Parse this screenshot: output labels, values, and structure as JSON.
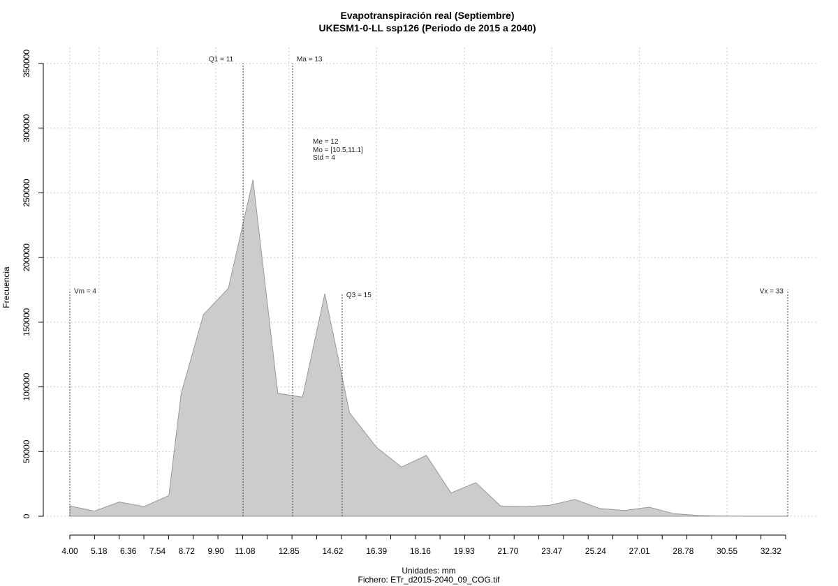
{
  "chart_data": {
    "type": "area",
    "title": "Evapotranspiración real (Septiembre)",
    "subtitle": "UKESM1-0-LL ssp126 (Periodo de 2015 a 2040)",
    "xlabel": "Unidades: mm",
    "ylabel": "Frecuencia",
    "footer": "Fichero: ETr_d2015-2040_09_COG.tif",
    "xlim": [
      4.0,
      33.0
    ],
    "ylim": [
      0,
      350000
    ],
    "x_ticks": [
      "4.00",
      "5.18",
      "6.36",
      "7.54",
      "8.72",
      "9.90",
      "11.08",
      "12.85",
      "14.62",
      "16.39",
      "18.16",
      "19.93",
      "21.70",
      "23.47",
      "25.24",
      "27.01",
      "28.78",
      "30.55",
      "32.32"
    ],
    "y_ticks": [
      "0",
      "50000",
      "100000",
      "150000",
      "200000",
      "250000",
      "300000",
      "350000"
    ],
    "grid": true,
    "colors": {
      "fill": "#cccccc",
      "stroke": "#999999",
      "grid": "#c8c8c8",
      "ref_line": "#444444"
    },
    "series": [
      {
        "x": [
          4.0,
          5.0,
          6.0,
          7.0,
          8.0,
          8.5,
          9.4,
          10.4,
          11.4,
          12.4,
          13.4,
          14.3,
          15.3,
          16.4,
          17.4,
          18.4,
          19.4,
          20.4,
          21.4,
          22.4,
          23.4,
          24.4,
          25.4,
          26.4,
          27.4,
          28.4,
          29.4,
          30.4,
          31.4,
          32.4,
          33.0
        ],
        "values": [
          8000,
          4000,
          11000,
          7500,
          16000,
          95000,
          156000,
          176000,
          260000,
          95000,
          92000,
          172000,
          80000,
          53000,
          38000,
          47000,
          18000,
          26000,
          8000,
          7500,
          8500,
          13000,
          6000,
          4500,
          7000,
          2000,
          600,
          200,
          100,
          100,
          100
        ]
      }
    ],
    "reference_lines": [
      {
        "label": "Vm = 4",
        "x": 4.0,
        "height": 175000
      },
      {
        "label": "Q1 = 11",
        "x": 11.0,
        "height": 350000
      },
      {
        "label": "Ma = 13",
        "x": 13.0,
        "height": 350000
      },
      {
        "label": "Q3 = 15",
        "x": 15.0,
        "height": 172000
      },
      {
        "label": "Vx = 33",
        "x": 33.0,
        "height": 175000
      }
    ],
    "stats": [
      "Me = 12",
      "Mo = [10.5,11.1]",
      "Std = 4"
    ]
  }
}
